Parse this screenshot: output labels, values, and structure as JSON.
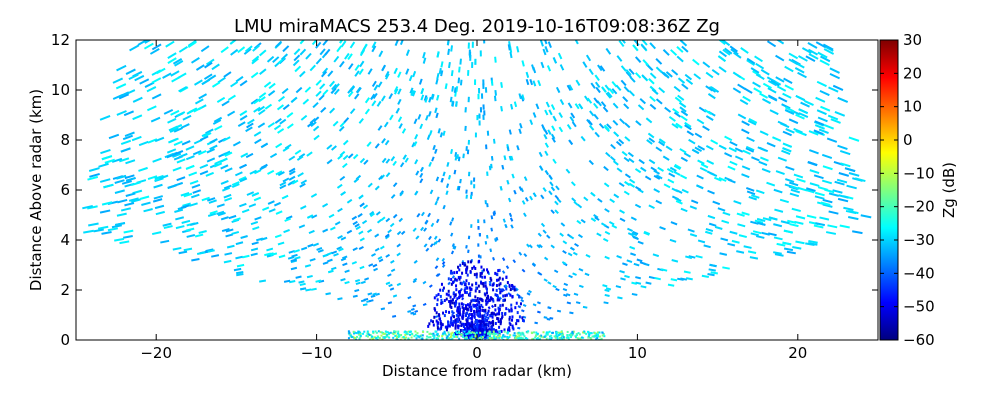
{
  "chart_data": {
    "type": "heatmap",
    "plot_kind": "RHI radar scan (polar sweep)",
    "title": "LMU miraMACS 253.4 Deg. 2019-10-16T09:08:36Z  Zg",
    "xlabel": "Distance from radar (km)",
    "ylabel": "Distance Above radar  (km)",
    "colorbar_label": "Zg (dB)",
    "xlim": [
      -25,
      25
    ],
    "ylim": [
      0,
      12
    ],
    "xticks": [
      -20,
      -10,
      0,
      10,
      20
    ],
    "yticks": [
      0,
      2,
      4,
      6,
      8,
      10,
      12
    ],
    "colorbar_range": [
      -60,
      30
    ],
    "colorbar_ticks": [
      30,
      20,
      10,
      0,
      -10,
      -20,
      -30,
      -40,
      -50,
      -60
    ],
    "colormap": "jet",
    "colormap_stops": [
      "#00007f",
      "#0000ff",
      "#007fff",
      "#00ffff",
      "#7fff7f",
      "#ffff00",
      "#ff7f00",
      "#ff0000",
      "#7f0000"
    ],
    "scan": {
      "elevation_min_deg": 10,
      "elevation_max_deg": 170,
      "max_range_km": 25,
      "background_dbz": -30,
      "near_radar_dbz": -55
    },
    "grid": false
  }
}
